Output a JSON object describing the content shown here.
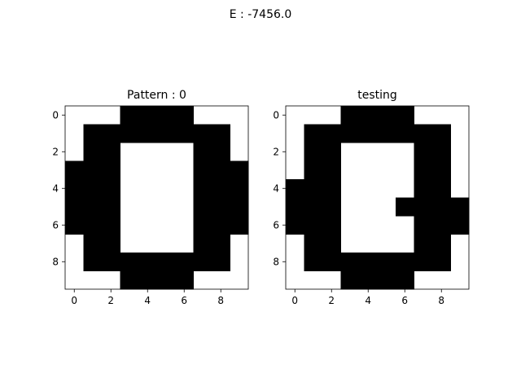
{
  "figure": {
    "suptitle": "E : -7456.0",
    "background": "#ffffff",
    "on_color": "#000000",
    "off_color": "#ffffff"
  },
  "chart_data": [
    {
      "type": "heatmap",
      "title": "Pattern : 0",
      "xticks": [
        0,
        2,
        4,
        6,
        8
      ],
      "yticks": [
        0,
        2,
        4,
        6,
        8
      ],
      "xlim": [
        -0.5,
        9.5
      ],
      "ylim": [
        9.5,
        -0.5
      ],
      "grid": [
        [
          0,
          0,
          0,
          1,
          1,
          1,
          1,
          0,
          0,
          0
        ],
        [
          0,
          1,
          1,
          1,
          1,
          1,
          1,
          1,
          1,
          0
        ],
        [
          0,
          1,
          1,
          0,
          0,
          0,
          0,
          1,
          1,
          0
        ],
        [
          1,
          1,
          1,
          0,
          0,
          0,
          0,
          1,
          1,
          1
        ],
        [
          1,
          1,
          1,
          0,
          0,
          0,
          0,
          1,
          1,
          1
        ],
        [
          1,
          1,
          1,
          0,
          0,
          0,
          0,
          1,
          1,
          1
        ],
        [
          1,
          1,
          1,
          0,
          0,
          0,
          0,
          1,
          1,
          1
        ],
        [
          0,
          1,
          1,
          0,
          0,
          0,
          0,
          1,
          1,
          0
        ],
        [
          0,
          1,
          1,
          1,
          1,
          1,
          1,
          1,
          1,
          0
        ],
        [
          0,
          0,
          0,
          1,
          1,
          1,
          1,
          0,
          0,
          0
        ]
      ]
    },
    {
      "type": "heatmap",
      "title": "testing",
      "xticks": [
        0,
        2,
        4,
        6,
        8
      ],
      "yticks": [
        0,
        2,
        4,
        6,
        8
      ],
      "xlim": [
        -0.5,
        9.5
      ],
      "ylim": [
        9.5,
        -0.5
      ],
      "grid": [
        [
          0,
          0,
          0,
          1,
          1,
          1,
          1,
          0,
          0,
          0
        ],
        [
          0,
          1,
          1,
          1,
          1,
          1,
          1,
          1,
          1,
          0
        ],
        [
          0,
          1,
          1,
          0,
          0,
          0,
          0,
          1,
          1,
          0
        ],
        [
          0,
          1,
          1,
          0,
          0,
          0,
          0,
          1,
          1,
          0
        ],
        [
          1,
          1,
          1,
          0,
          0,
          0,
          0,
          1,
          1,
          0
        ],
        [
          1,
          1,
          1,
          0,
          0,
          0,
          1,
          1,
          1,
          1
        ],
        [
          1,
          1,
          1,
          0,
          0,
          0,
          0,
          1,
          1,
          1
        ],
        [
          0,
          1,
          1,
          0,
          0,
          0,
          0,
          1,
          1,
          0
        ],
        [
          0,
          1,
          1,
          1,
          1,
          1,
          1,
          1,
          1,
          0
        ],
        [
          0,
          0,
          0,
          1,
          1,
          1,
          1,
          0,
          0,
          0
        ]
      ]
    }
  ]
}
